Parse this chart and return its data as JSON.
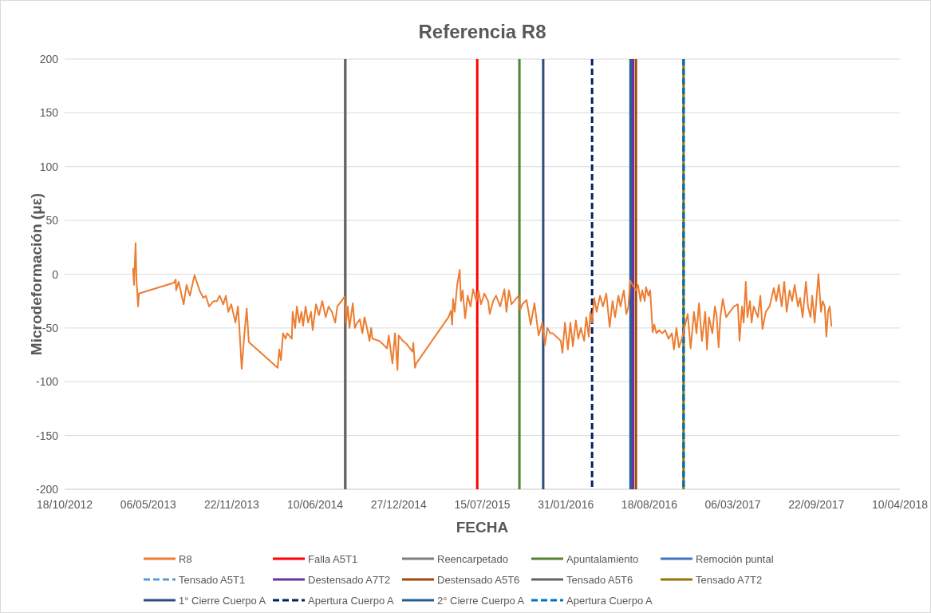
{
  "chart_data": {
    "type": "line",
    "title": "Referencia R8",
    "xlabel": "FECHA",
    "ylabel": "Microdeformación (με)",
    "xlim": [
      "2012-10-18",
      "2018-04-10"
    ],
    "xticks": [
      {
        "value": "2012-10-18",
        "label": "18/10/2012"
      },
      {
        "value": "2013-05-06",
        "label": "06/05/2013"
      },
      {
        "value": "2013-11-22",
        "label": "22/11/2013"
      },
      {
        "value": "2014-06-10",
        "label": "10/06/2014"
      },
      {
        "value": "2014-12-27",
        "label": "27/12/2014"
      },
      {
        "value": "2015-07-15",
        "label": "15/07/2015"
      },
      {
        "value": "2016-01-31",
        "label": "31/01/2016"
      },
      {
        "value": "2016-08-18",
        "label": "18/08/2016"
      },
      {
        "value": "2017-03-06",
        "label": "06/03/2017"
      },
      {
        "value": "2017-09-22",
        "label": "22/09/2017"
      },
      {
        "value": "2018-04-10",
        "label": "10/04/2018"
      }
    ],
    "ylim": [
      -200,
      200
    ],
    "yticks": [
      -200,
      -150,
      -100,
      -50,
      0,
      50,
      100,
      150,
      200
    ],
    "grid": "y",
    "legend": "bottom",
    "series": [
      {
        "name": "R8",
        "color": "#ed7d31",
        "x": [
          "2013-03-31",
          "2013-04-02",
          "2013-04-06",
          "2013-04-08",
          "2013-04-12",
          "2013-04-14",
          "2013-07-07",
          "2013-07-11",
          "2013-07-12",
          "2013-07-18",
          "2013-07-30",
          "2013-08-06",
          "2013-08-14",
          "2013-08-18",
          "2013-08-25",
          "2013-08-31",
          "2013-09-06",
          "2013-09-15",
          "2013-09-21",
          "2013-09-29",
          "2013-10-10",
          "2013-10-18",
          "2013-10-24",
          "2013-11-02",
          "2013-11-08",
          "2013-11-14",
          "2013-11-21",
          "2013-12-01",
          "2013-12-07",
          "2013-12-10",
          "2013-12-16",
          "2013-12-22",
          "2013-12-28",
          "2014-01-02",
          "2014-03-12",
          "2014-03-16",
          "2014-03-20",
          "2014-03-25",
          "2014-03-31",
          "2014-04-04",
          "2014-04-15",
          "2014-04-17",
          "2014-04-23",
          "2014-04-27",
          "2014-05-03",
          "2014-05-08",
          "2014-05-12",
          "2014-05-18",
          "2014-05-24",
          "2014-05-31",
          "2014-06-04",
          "2014-06-12",
          "2014-06-19",
          "2014-06-27",
          "2014-07-05",
          "2014-07-12",
          "2014-07-20",
          "2014-07-28",
          "2014-08-02",
          "2014-08-12",
          "2014-08-19",
          "2014-08-23",
          "2014-08-27",
          "2014-08-31",
          "2014-09-08",
          "2014-09-13",
          "2014-09-19",
          "2014-09-25",
          "2014-10-01",
          "2014-10-06",
          "2014-10-12",
          "2014-10-18",
          "2014-10-22",
          "2014-10-25",
          "2014-11-10",
          "2014-11-19",
          "2014-11-29",
          "2014-12-03",
          "2014-12-12",
          "2014-12-18",
          "2014-12-24",
          "2014-12-27",
          "2015-01-06",
          "2015-01-15",
          "2015-01-29",
          "2015-01-31",
          "2015-02-04",
          "2015-02-07",
          "2015-04-25",
          "2015-05-01",
          "2015-05-04",
          "2015-05-06",
          "2015-05-10",
          "2015-05-16",
          "2015-05-22",
          "2015-05-25",
          "2015-05-29",
          "2015-06-04",
          "2015-06-10",
          "2015-06-17",
          "2015-06-23",
          "2015-07-01",
          "2015-07-06",
          "2015-07-12",
          "2015-07-20",
          "2015-07-29",
          "2015-08-02",
          "2015-08-10",
          "2015-08-17",
          "2015-08-27",
          "2015-09-06",
          "2015-09-11",
          "2015-09-17",
          "2015-09-23",
          "2015-10-10",
          "2015-10-14",
          "2015-10-19",
          "2015-10-29",
          "2015-11-08",
          "2015-11-17",
          "2015-11-27",
          "2015-12-06",
          "2015-12-12",
          "2015-12-18",
          "2015-12-25",
          "2015-12-31",
          "2016-01-19",
          "2016-01-23",
          "2016-01-29",
          "2016-02-05",
          "2016-02-11",
          "2016-02-17",
          "2016-02-24",
          "2016-03-01",
          "2016-03-07",
          "2016-03-15",
          "2016-03-20",
          "2016-03-26",
          "2016-03-30",
          "2016-04-03",
          "2016-04-08",
          "2016-04-14",
          "2016-04-22",
          "2016-04-29",
          "2016-05-07",
          "2016-05-15",
          "2016-05-22",
          "2016-05-28",
          "2016-06-05",
          "2016-06-10",
          "2016-06-18",
          "2016-06-24",
          "2016-06-29",
          "2016-07-03",
          "2016-07-09",
          "2016-07-17",
          "2016-07-22",
          "2016-07-28",
          "2016-08-01",
          "2016-08-07",
          "2016-08-10",
          "2016-08-16",
          "2016-08-20",
          "2016-08-24",
          "2016-08-26",
          "2016-08-30",
          "2016-09-04",
          "2016-09-10",
          "2016-09-18",
          "2016-09-25",
          "2016-10-03",
          "2016-10-11",
          "2016-10-16",
          "2016-10-22",
          "2016-10-28",
          "2016-11-04",
          "2016-11-10",
          "2016-11-18",
          "2016-11-25",
          "2016-12-03",
          "2016-12-09",
          "2016-12-15",
          "2016-12-22",
          "2016-12-30",
          "2017-01-03",
          "2017-01-08",
          "2017-01-16",
          "2017-01-22",
          "2017-01-26",
          "2017-01-31",
          "2017-02-04",
          "2017-02-10",
          "2017-02-18",
          "2017-02-27",
          "2017-03-09",
          "2017-03-18",
          "2017-03-22",
          "2017-03-28",
          "2017-04-01",
          "2017-04-06",
          "2017-04-10",
          "2017-04-16",
          "2017-04-20",
          "2017-04-25",
          "2017-05-05",
          "2017-05-11",
          "2017-05-16",
          "2017-05-24",
          "2017-06-02",
          "2017-06-12",
          "2017-06-18",
          "2017-06-24",
          "2017-07-01",
          "2017-07-07",
          "2017-07-13",
          "2017-07-20",
          "2017-07-26",
          "2017-08-01",
          "2017-08-09",
          "2017-08-14",
          "2017-08-20",
          "2017-08-28",
          "2017-09-02",
          "2017-09-08",
          "2017-09-12",
          "2017-09-18",
          "2017-09-23",
          "2017-09-27",
          "2017-10-03",
          "2017-10-07",
          "2017-10-12",
          "2017-10-16",
          "2017-10-20",
          "2017-10-24",
          "2017-10-28"
        ],
        "values": [
          5,
          -10,
          29,
          -5,
          -30,
          -18,
          -8,
          -5,
          -15,
          -7,
          -28,
          -10,
          -20,
          -13,
          -1,
          -8,
          -15,
          -22,
          -20,
          -30,
          -25,
          -25,
          -20,
          -28,
          -20,
          -35,
          -28,
          -45,
          -30,
          -47,
          -88,
          -58,
          -32,
          -63,
          -87,
          -70,
          -80,
          -55,
          -60,
          -55,
          -60,
          -35,
          -50,
          -30,
          -45,
          -35,
          -48,
          -30,
          -45,
          -35,
          -52,
          -28,
          -38,
          -25,
          -40,
          -30,
          -35,
          -45,
          -30,
          -25,
          -21,
          -45,
          -30,
          -50,
          -27,
          -50,
          -45,
          -42,
          -55,
          -40,
          -50,
          -62,
          -50,
          -60,
          -62,
          -65,
          -69,
          -57,
          -83,
          -55,
          -89,
          -57,
          -62,
          -65,
          -72,
          -64,
          -87,
          -83,
          -40,
          -34,
          -47,
          -23,
          -35,
          -10,
          4,
          -25,
          -15,
          -41,
          -20,
          -30,
          -14,
          -25,
          -15,
          -28,
          -18,
          -25,
          -37,
          -25,
          -20,
          -30,
          -14,
          -35,
          -15,
          -28,
          -20,
          -33,
          -28,
          -24,
          -47,
          -27,
          -57,
          -45,
          -66,
          -50,
          -55,
          -55,
          -62,
          -73,
          -45,
          -70,
          -45,
          -67,
          -43,
          -60,
          -50,
          -62,
          -40,
          -58,
          -35,
          -45,
          -22,
          -35,
          -20,
          -30,
          -18,
          -49,
          -25,
          -40,
          -20,
          -30,
          -15,
          -37,
          -30,
          -6,
          -10,
          -15,
          -10,
          -25,
          -15,
          -25,
          -12,
          -20,
          -15,
          -40,
          -54,
          -47,
          -55,
          -52,
          -55,
          -52,
          -60,
          -55,
          -70,
          -50,
          -68,
          -60,
          -50,
          -37,
          -69,
          -35,
          -55,
          -27,
          -62,
          -35,
          -70,
          -40,
          -55,
          -30,
          -38,
          -68,
          -40,
          -23,
          -40,
          -35,
          -30,
          -28,
          -62,
          -30,
          -45,
          -7,
          -40,
          -25,
          -45,
          -30,
          -40,
          -20,
          -51,
          -35,
          -30,
          -13,
          -25,
          -10,
          -30,
          -7,
          -35,
          -15,
          -25,
          -10,
          -30,
          -22,
          -40,
          -7,
          -30,
          -40,
          -20,
          -45,
          -20,
          0,
          -35,
          -25,
          -30,
          -58,
          -35,
          -30,
          -48
        ]
      }
    ],
    "ref_lines": [
      {
        "axis": "x",
        "value": "2015-07-03",
        "label": "Falla A5T1",
        "color": "#ff0000",
        "line_style": "solid"
      },
      {
        "axis": "x",
        "value": "2014-08-21",
        "label": "Reencarpetado",
        "color": "#7f7f7f",
        "line_style": "solid"
      },
      {
        "axis": "x",
        "value": "2015-10-12",
        "label": "Apuntalamiento",
        "color": "#548235",
        "line_style": "solid"
      },
      {
        "axis": "x",
        "value": "2016-07-08",
        "label": "Remoción puntal",
        "color": "#4472c4",
        "line_style": "solid"
      },
      {
        "axis": "x",
        "value": "2016-11-08",
        "label": "Tensado A5T1",
        "color": "#5b9bd5",
        "line_style": "dashed"
      },
      {
        "axis": "x",
        "value": "2016-07-10",
        "label": "Destensado A7T2",
        "color": "#7030a0",
        "line_style": "solid"
      },
      {
        "axis": "x",
        "value": "2016-07-17",
        "label": "Destensado A5T6",
        "color": "#9e480e",
        "line_style": "solid"
      },
      {
        "axis": "x",
        "value": "2014-08-21",
        "label": "Tensado A5T6",
        "color": "#636363",
        "line_style": "solid"
      },
      {
        "axis": "x",
        "value": "2016-11-08",
        "label": "Tensado A7T2",
        "color": "#997300",
        "line_style": "solid"
      },
      {
        "axis": "x",
        "value": "2015-12-08",
        "label": "1° Cierre Cuerpo A",
        "color": "#2f4b7c",
        "line_style": "solid"
      },
      {
        "axis": "x",
        "value": "2016-04-03",
        "label": "Apertura Cuerpo A",
        "color": "#002060",
        "line_style": "dashed"
      },
      {
        "axis": "x",
        "value": "2016-07-04",
        "label": "2° Cierre Cuerpo A",
        "color": "#255e91",
        "line_style": "solid"
      },
      {
        "axis": "x",
        "value": "2016-11-08",
        "label": "Apertura Cuerpo A",
        "color": "#0070c0",
        "line_style": "dashed"
      }
    ]
  }
}
